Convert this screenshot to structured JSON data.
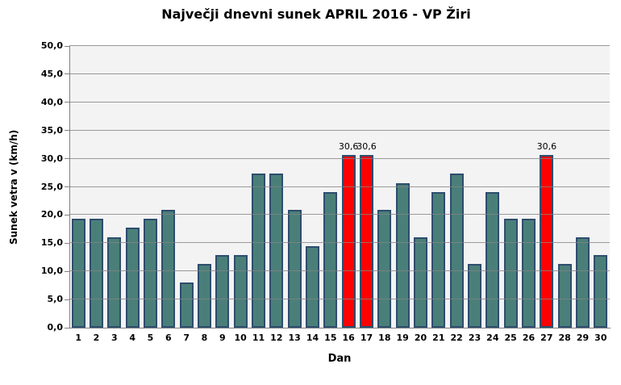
{
  "chart_data": {
    "type": "bar",
    "title": "Največji dnevni sunek APRIL 2016 - VP Žiri",
    "xlabel": "Dan",
    "ylabel": "Sunek vetra v (km/h)",
    "categories": [
      "1",
      "2",
      "3",
      "4",
      "5",
      "6",
      "7",
      "8",
      "9",
      "10",
      "11",
      "12",
      "13",
      "14",
      "15",
      "16",
      "17",
      "18",
      "19",
      "20",
      "21",
      "22",
      "23",
      "24",
      "25",
      "26",
      "27",
      "28",
      "29",
      "30"
    ],
    "values": [
      19.3,
      19.3,
      16.1,
      17.7,
      19.3,
      20.9,
      8.0,
      11.3,
      12.9,
      12.9,
      27.4,
      27.4,
      20.9,
      14.5,
      24.1,
      30.6,
      30.6,
      20.9,
      25.7,
      16.1,
      24.1,
      27.4,
      11.3,
      24.1,
      19.3,
      19.3,
      30.6,
      11.3,
      16.1,
      12.9
    ],
    "highlighted_categories": [
      "16",
      "17",
      "27"
    ],
    "data_labels": [
      {
        "category": "16",
        "label": "30,6"
      },
      {
        "category": "17",
        "label": "30,6"
      },
      {
        "category": "27",
        "label": "30,6"
      }
    ],
    "ylim": [
      0,
      50
    ],
    "ytick_step": 5,
    "ytick_labels": [
      "0,0",
      "5,0",
      "10,0",
      "15,0",
      "20,0",
      "25,0",
      "30,0",
      "35,0",
      "40,0",
      "45,0",
      "50,0"
    ],
    "grid": true,
    "legend": "none",
    "colors": {
      "bar_fill": "#4A7F79",
      "bar_border": "#2E4D6E",
      "highlight_fill": "#FF0000",
      "plot_background": "#F3F3F3",
      "gridline": "#999999",
      "axis_line": "#808080",
      "text": "#000000"
    }
  }
}
